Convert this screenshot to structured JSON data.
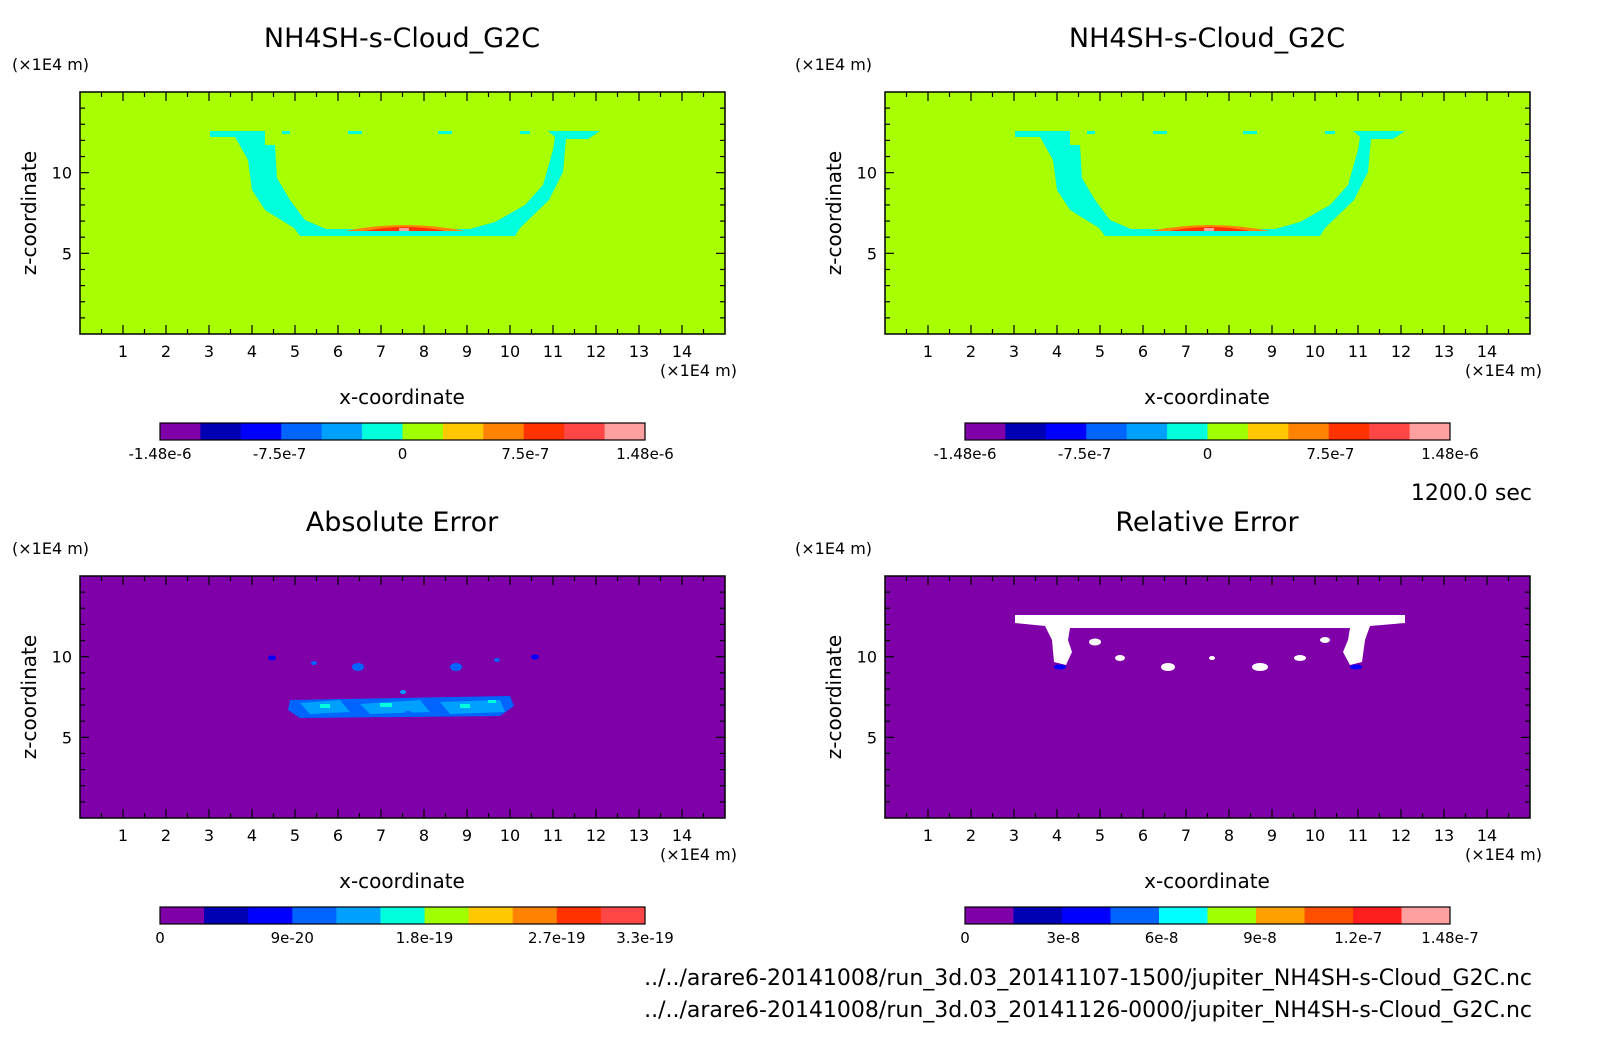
{
  "time_label": "1200.0 sec",
  "files": [
    "../../arare6-20141008/run_3d.03_20141107-1500/jupiter_NH4SH-s-Cloud_G2C.nc",
    "../../arare6-20141008/run_3d.03_20141126-0000/jupiter_NH4SH-s-Cloud_G2C.nc"
  ],
  "chart_data": [
    {
      "type": "heatmap",
      "title": "NH4SH-s-Cloud_G2C",
      "xlabel": "x-coordinate",
      "ylabel": "z-coordinate",
      "xunit": "(×1E4 m)",
      "yunit": "(×1E4 m)",
      "xlim": [
        0,
        15
      ],
      "ylim": [
        0,
        15
      ],
      "xticks": [
        1,
        2,
        3,
        4,
        5,
        6,
        7,
        8,
        9,
        10,
        11,
        12,
        13,
        14
      ],
      "yticks": [
        5,
        10
      ],
      "background": "#a8ff00",
      "colorbar": {
        "colors": [
          "#7f00a8",
          "#0000b4",
          "#0000ff",
          "#0064ff",
          "#00a0ff",
          "#00ffdc",
          "#a0ff00",
          "#ffc800",
          "#ff8200",
          "#ff3200",
          "#ff4646",
          "#ffa0a0"
        ],
        "range": [
          -1.48e-06,
          1.48e-06
        ],
        "tick_labels": [
          "-1.48e-6",
          "-7.5e-7",
          "0",
          "7.5e-7",
          "1.48e-6"
        ],
        "tick_values": [
          -1.48e-06,
          -7.5e-07,
          0,
          7.5e-07,
          1.48e-06
        ]
      }
    },
    {
      "type": "heatmap",
      "title": "NH4SH-s-Cloud_G2C",
      "xlabel": "x-coordinate",
      "ylabel": "z-coordinate",
      "xunit": "(×1E4 m)",
      "yunit": "(×1E4 m)",
      "xlim": [
        0,
        15
      ],
      "ylim": [
        0,
        15
      ],
      "xticks": [
        1,
        2,
        3,
        4,
        5,
        6,
        7,
        8,
        9,
        10,
        11,
        12,
        13,
        14
      ],
      "yticks": [
        5,
        10
      ],
      "background": "#a8ff00",
      "colorbar": {
        "colors": [
          "#7f00a8",
          "#0000b4",
          "#0000ff",
          "#0064ff",
          "#00a0ff",
          "#00ffdc",
          "#a0ff00",
          "#ffc800",
          "#ff8200",
          "#ff3200",
          "#ff4646",
          "#ffa0a0"
        ],
        "range": [
          -1.48e-06,
          1.48e-06
        ],
        "tick_labels": [
          "-1.48e-6",
          "-7.5e-7",
          "0",
          "7.5e-7",
          "1.48e-6"
        ],
        "tick_values": [
          -1.48e-06,
          -7.5e-07,
          0,
          7.5e-07,
          1.48e-06
        ]
      }
    },
    {
      "type": "heatmap",
      "title": "Absolute Error",
      "xlabel": "x-coordinate",
      "ylabel": "z-coordinate",
      "xunit": "(×1E4 m)",
      "yunit": "(×1E4 m)",
      "xlim": [
        0,
        15
      ],
      "ylim": [
        0,
        15
      ],
      "xticks": [
        1,
        2,
        3,
        4,
        5,
        6,
        7,
        8,
        9,
        10,
        11,
        12,
        13,
        14
      ],
      "yticks": [
        5,
        10
      ],
      "background": "#7f00a8",
      "colorbar": {
        "colors": [
          "#7f00a8",
          "#0000b4",
          "#0000ff",
          "#0064ff",
          "#00a0ff",
          "#00ffdc",
          "#a0ff00",
          "#ffc800",
          "#ff8200",
          "#ff3200",
          "#ff4646"
        ],
        "range": [
          0,
          3.3e-19
        ],
        "tick_labels": [
          "0",
          "9e-20",
          "1.8e-19",
          "2.7e-19",
          "3.3e-19"
        ],
        "tick_values": [
          0,
          9e-20,
          1.8e-19,
          2.7e-19,
          3.3e-19
        ]
      }
    },
    {
      "type": "heatmap",
      "title": "Relative Error",
      "xlabel": "x-coordinate",
      "ylabel": "z-coordinate",
      "xunit": "(×1E4 m)",
      "yunit": "(×1E4 m)",
      "xlim": [
        0,
        15
      ],
      "ylim": [
        0,
        15
      ],
      "xticks": [
        1,
        2,
        3,
        4,
        5,
        6,
        7,
        8,
        9,
        10,
        11,
        12,
        13,
        14
      ],
      "yticks": [
        5,
        10
      ],
      "background": "#7f00a8",
      "colorbar": {
        "colors": [
          "#7f00a8",
          "#0000b4",
          "#0000ff",
          "#0064ff",
          "#00ffff",
          "#a0ff00",
          "#ffa000",
          "#ff5000",
          "#ff1e1e",
          "#ffa0a0"
        ],
        "range": [
          0,
          1.48e-07
        ],
        "tick_labels": [
          "0",
          "3e-8",
          "6e-8",
          "9e-8",
          "1.2e-7",
          "1.48e-7"
        ],
        "tick_values": [
          0,
          3e-08,
          6e-08,
          9e-08,
          1.2e-07,
          1.48e-07
        ]
      }
    }
  ]
}
